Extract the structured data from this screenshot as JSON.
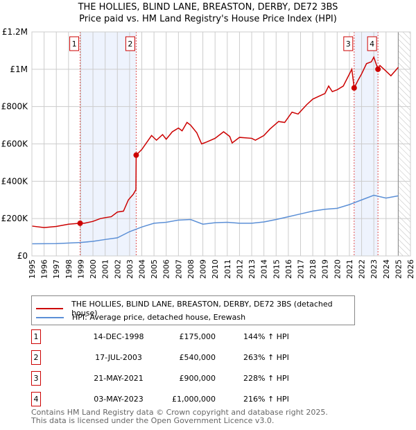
{
  "chart_data": {
    "type": "line",
    "title": "THE HOLLIES, BLIND LANE, BREASTON, DERBY, DE72 3BS",
    "subtitle": "Price paid vs. HM Land Registry's House Price Index (HPI)",
    "xlim": [
      1995,
      2026
    ],
    "ylim": [
      0,
      1200000
    ],
    "x_ticks": [
      "1995",
      "1996",
      "1997",
      "1998",
      "1999",
      "2000",
      "2001",
      "2002",
      "2003",
      "2004",
      "2005",
      "2006",
      "2007",
      "2008",
      "2009",
      "2010",
      "2011",
      "2012",
      "2013",
      "2014",
      "2015",
      "2016",
      "2017",
      "2018",
      "2019",
      "2020",
      "2021",
      "2022",
      "2023",
      "2024",
      "2025",
      "2026"
    ],
    "y_ticks": [
      {
        "v": 0,
        "label": "£0"
      },
      {
        "v": 200000,
        "label": "£200K"
      },
      {
        "v": 400000,
        "label": "£400K"
      },
      {
        "v": 600000,
        "label": "£600K"
      },
      {
        "v": 800000,
        "label": "£800K"
      },
      {
        "v": 1000000,
        "label": "£1M"
      },
      {
        "v": 1200000,
        "label": "£1.2M"
      }
    ],
    "grid": true,
    "forecast_from": 2025,
    "series": [
      {
        "name": "THE HOLLIES, BLIND LANE, BREASTON, DERBY, DE72 3BS (detached house)",
        "color": "#cc0000",
        "x": [
          1995,
          1996,
          1997,
          1998,
          1998.95,
          1999.3,
          2000,
          2000.6,
          2001,
          2001.5,
          2002,
          2002.5,
          2002.9,
          2003.3,
          2003.52,
          2003.54,
          2004,
          2004.8,
          2005.2,
          2005.7,
          2006,
          2006.5,
          2007,
          2007.3,
          2007.7,
          2008,
          2008.5,
          2008.9,
          2009.3,
          2010,
          2010.7,
          2011.2,
          2011.4,
          2012,
          2013,
          2013.3,
          2014,
          2014.5,
          2015.2,
          2015.7,
          2016.3,
          2016.8,
          2017.5,
          2018,
          2018.5,
          2019,
          2019.3,
          2019.6,
          2020,
          2020.5,
          2021.2,
          2021.39,
          2021.7,
          2022,
          2022.4,
          2022.8,
          2023,
          2023.34,
          2023.5,
          2024,
          2024.4,
          2025
        ],
        "y": [
          160000,
          152000,
          158000,
          170000,
          175000,
          175000,
          185000,
          200000,
          205000,
          210000,
          235000,
          240000,
          300000,
          330000,
          355000,
          540000,
          570000,
          645000,
          620000,
          650000,
          625000,
          665000,
          685000,
          670000,
          715000,
          700000,
          660000,
          600000,
          610000,
          630000,
          665000,
          640000,
          605000,
          635000,
          630000,
          620000,
          645000,
          680000,
          720000,
          715000,
          770000,
          760000,
          810000,
          840000,
          855000,
          870000,
          910000,
          880000,
          890000,
          910000,
          1000000,
          900000,
          940000,
          975000,
          1030000,
          1040000,
          1065000,
          1000000,
          1020000,
          990000,
          965000,
          1010000
        ]
      },
      {
        "name": "HPI: Average price, detached house, Erewash",
        "color": "#5b8fd6",
        "x": [
          1995,
          1997,
          1999,
          2000,
          2001,
          2002,
          2003,
          2004,
          2005,
          2006,
          2007,
          2008,
          2009,
          2010,
          2011,
          2012,
          2013,
          2014,
          2015,
          2016,
          2017,
          2018,
          2019,
          2020,
          2021,
          2022,
          2023,
          2024,
          2025
        ],
        "y": [
          65000,
          66000,
          72000,
          78000,
          88000,
          97000,
          130000,
          155000,
          175000,
          180000,
          192000,
          195000,
          170000,
          178000,
          180000,
          175000,
          175000,
          182000,
          195000,
          210000,
          225000,
          240000,
          250000,
          255000,
          275000,
          300000,
          325000,
          310000,
          322000
        ]
      }
    ],
    "sales": [
      {
        "n": "1",
        "x": 1998.95,
        "y": 175000,
        "date": "14-DEC-1998",
        "price": "£175,000",
        "hpi": "144% ↑ HPI"
      },
      {
        "n": "2",
        "x": 2003.54,
        "y": 540000,
        "date": "17-JUL-2003",
        "price": "£540,000",
        "hpi": "263% ↑ HPI"
      },
      {
        "n": "3",
        "x": 2021.39,
        "y": 900000,
        "date": "21-MAY-2021",
        "price": "£900,000",
        "hpi": "228% ↑ HPI"
      },
      {
        "n": "4",
        "x": 2023.34,
        "y": 1000000,
        "date": "03-MAY-2023",
        "price": "£1,000,000",
        "hpi": "216% ↑ HPI"
      }
    ]
  },
  "legend": {
    "red": "THE HOLLIES, BLIND LANE, BREASTON, DERBY, DE72 3BS (detached house)",
    "blue": "HPI: Average price, detached house, Erewash"
  },
  "footer": {
    "line1": "Contains HM Land Registry data © Crown copyright and database right 2025.",
    "line2": "This data is licensed under the Open Government Licence v3.0."
  }
}
